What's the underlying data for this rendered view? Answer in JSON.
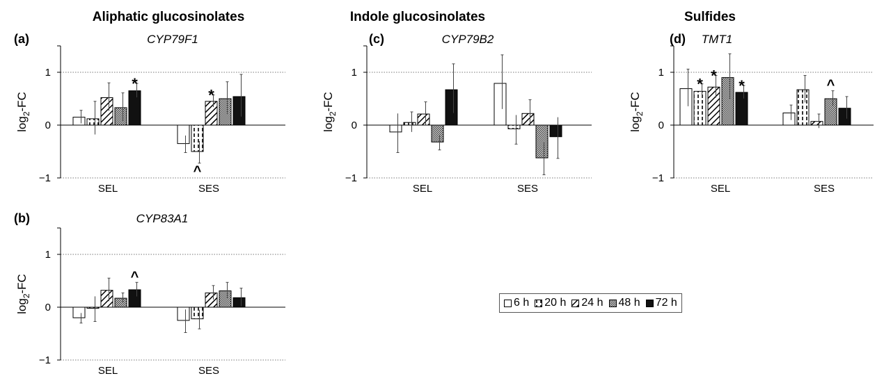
{
  "figure": {
    "group_titles": [
      "Aliphatic glucosinolates",
      "Indole glucosinolates",
      "Sulfides"
    ]
  },
  "colors": {
    "bar_stroke": "#000000",
    "solid_fill": "#111111",
    "grid": "#777777"
  },
  "chart_data": [
    {
      "type": "bar",
      "panel_label": "(a)",
      "gene": "CYP79F1",
      "ylabel": "log2-FC",
      "ylim": [
        -1,
        1.5
      ],
      "yticks": [
        "1",
        "0",
        "−1"
      ],
      "grid": "dotted at y = 1 and y = -1",
      "categories": [
        "SEL",
        "SES"
      ],
      "series": [
        {
          "name": "6 h",
          "values": [
            0.15,
            -0.35
          ],
          "errors": [
            0.13,
            0.17
          ],
          "annotations": [
            "",
            ""
          ]
        },
        {
          "name": "20 h",
          "values": [
            0.12,
            -0.5
          ],
          "errors": [
            0.33,
            0.22
          ],
          "annotations": [
            "",
            "^"
          ]
        },
        {
          "name": "24 h",
          "values": [
            0.52,
            0.45
          ],
          "errors": [
            0.28,
            0.12
          ],
          "annotations": [
            "",
            "*"
          ]
        },
        {
          "name": "48 h",
          "values": [
            0.33,
            0.5
          ],
          "errors": [
            0.28,
            0.32
          ],
          "annotations": [
            "",
            ""
          ]
        },
        {
          "name": "72 h",
          "values": [
            0.65,
            0.54
          ],
          "errors": [
            0.14,
            0.42
          ],
          "annotations": [
            "*",
            ""
          ]
        }
      ]
    },
    {
      "type": "bar",
      "panel_label": "(b)",
      "gene": "CYP83A1",
      "ylabel": "log2-FC",
      "ylim": [
        -1,
        1.5
      ],
      "yticks": [
        "1",
        "0",
        "−1"
      ],
      "grid": "dotted at y = 1 and y = -1",
      "categories": [
        "SEL",
        "SES"
      ],
      "series": [
        {
          "name": "6 h",
          "values": [
            -0.2,
            -0.25
          ],
          "errors": [
            0.1,
            0.23
          ],
          "annotations": [
            "",
            ""
          ]
        },
        {
          "name": "20 h",
          "values": [
            -0.02,
            -0.22
          ],
          "errors": [
            0.25,
            0.19
          ],
          "annotations": [
            "",
            ""
          ]
        },
        {
          "name": "24 h",
          "values": [
            0.32,
            0.27
          ],
          "errors": [
            0.23,
            0.14
          ],
          "annotations": [
            "",
            ""
          ]
        },
        {
          "name": "48 h",
          "values": [
            0.17,
            0.31
          ],
          "errors": [
            0.1,
            0.16
          ],
          "annotations": [
            "",
            ""
          ]
        },
        {
          "name": "72 h",
          "values": [
            0.33,
            0.18
          ],
          "errors": [
            0.14,
            0.18
          ],
          "annotations": [
            "^",
            ""
          ]
        }
      ]
    },
    {
      "type": "bar",
      "panel_label": "(c)",
      "gene": "CYP79B2",
      "ylabel": "log2-FC",
      "ylim": [
        -1,
        1.5
      ],
      "yticks": [
        "1",
        "0",
        "−1"
      ],
      "grid": "dotted at y = 1 and y = -1",
      "categories": [
        "SEL",
        "SES"
      ],
      "series": [
        {
          "name": "6 h",
          "values": [
            -0.13,
            0.79
          ],
          "errors": [
            0.39,
            0.54
          ],
          "annotations": [
            "",
            ""
          ]
        },
        {
          "name": "20 h",
          "values": [
            0.05,
            -0.07
          ],
          "errors": [
            0.2,
            0.29
          ],
          "annotations": [
            "",
            ""
          ]
        },
        {
          "name": "24 h",
          "values": [
            0.21,
            0.22
          ],
          "errors": [
            0.23,
            0.26
          ],
          "annotations": [
            "",
            ""
          ]
        },
        {
          "name": "48 h",
          "values": [
            -0.32,
            -0.62
          ],
          "errors": [
            0.15,
            0.32
          ],
          "annotations": [
            "",
            ""
          ]
        },
        {
          "name": "72 h",
          "values": [
            0.67,
            -0.22
          ],
          "errors": [
            0.49,
            0.41
          ],
          "annotations": [
            "",
            ""
          ]
        }
      ]
    },
    {
      "type": "bar",
      "panel_label": "(d)",
      "gene": "TMT1",
      "ylabel": "log2-FC",
      "ylim": [
        -1,
        1.5
      ],
      "yticks": [
        "1",
        "0",
        "−1"
      ],
      "grid": "dotted at y = 1 and y = -1",
      "categories": [
        "SEL",
        "SES"
      ],
      "series": [
        {
          "name": "6 h",
          "values": [
            0.69,
            0.23
          ],
          "errors": [
            0.37,
            0.15
          ],
          "annotations": [
            "",
            ""
          ]
        },
        {
          "name": "20 h",
          "values": [
            0.64,
            0.67
          ],
          "errors": [
            0.14,
            0.27
          ],
          "annotations": [
            "*",
            ""
          ]
        },
        {
          "name": "24 h",
          "values": [
            0.72,
            0.07
          ],
          "errors": [
            0.22,
            0.14
          ],
          "annotations": [
            "*",
            ""
          ]
        },
        {
          "name": "48 h",
          "values": [
            0.9,
            0.5
          ],
          "errors": [
            0.45,
            0.15
          ],
          "annotations": [
            "",
            "^"
          ]
        },
        {
          "name": "72 h",
          "values": [
            0.62,
            0.32
          ],
          "errors": [
            0.13,
            0.22
          ],
          "annotations": [
            "*",
            ""
          ]
        }
      ]
    }
  ],
  "legend": {
    "items": [
      {
        "label": "6 h",
        "pattern": "open"
      },
      {
        "label": "20 h",
        "pattern": "dashed-vertical"
      },
      {
        "label": "24 h",
        "pattern": "diagonal-hatch"
      },
      {
        "label": "48 h",
        "pattern": "crosshatch"
      },
      {
        "label": "72 h",
        "pattern": "solid"
      }
    ]
  }
}
